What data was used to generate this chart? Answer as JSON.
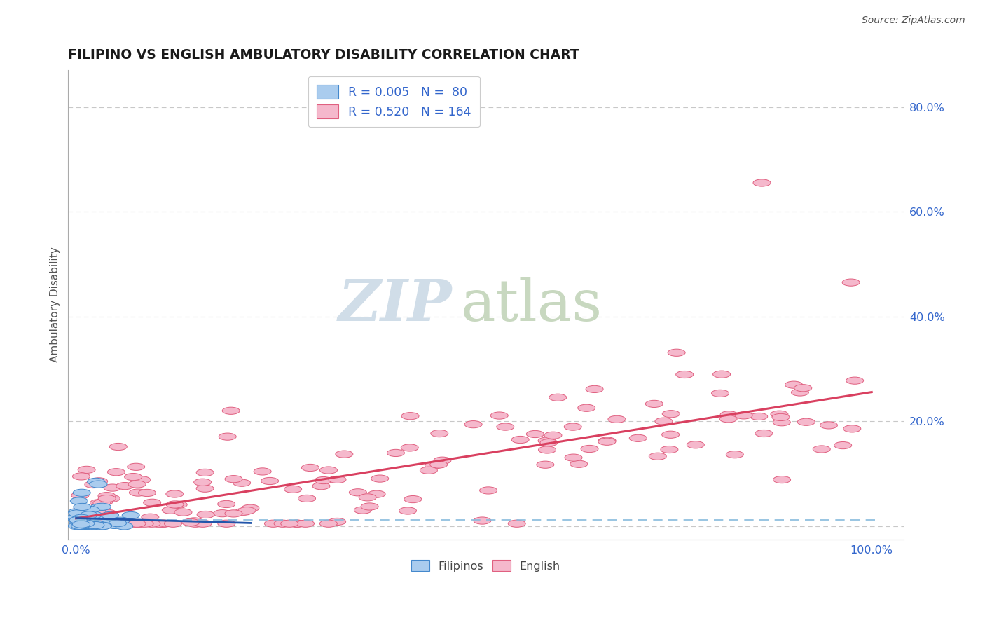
{
  "title": "FILIPINO VS ENGLISH AMBULATORY DISABILITY CORRELATION CHART",
  "source": "Source: ZipAtlas.com",
  "ylabel": "Ambulatory Disability",
  "background_color": "#ffffff",
  "grid_color": "#c8c8c8",
  "title_color": "#1a1a1a",
  "source_color": "#555555",
  "ylabel_color": "#555555",
  "tick_color": "#3366cc",
  "filipino_face": "#aaccee",
  "filipino_edge": "#4488cc",
  "english_face": "#f5b8cc",
  "english_edge": "#e06080",
  "reg_english_color": "#d94060",
  "reg_filipino_solid_color": "#2255aa",
  "reg_filipino_dash_color": "#88bbdd",
  "watermark_color": "#d0dde8",
  "legend_edge_color": "#cccccc",
  "legend_text_color": "#3366cc"
}
